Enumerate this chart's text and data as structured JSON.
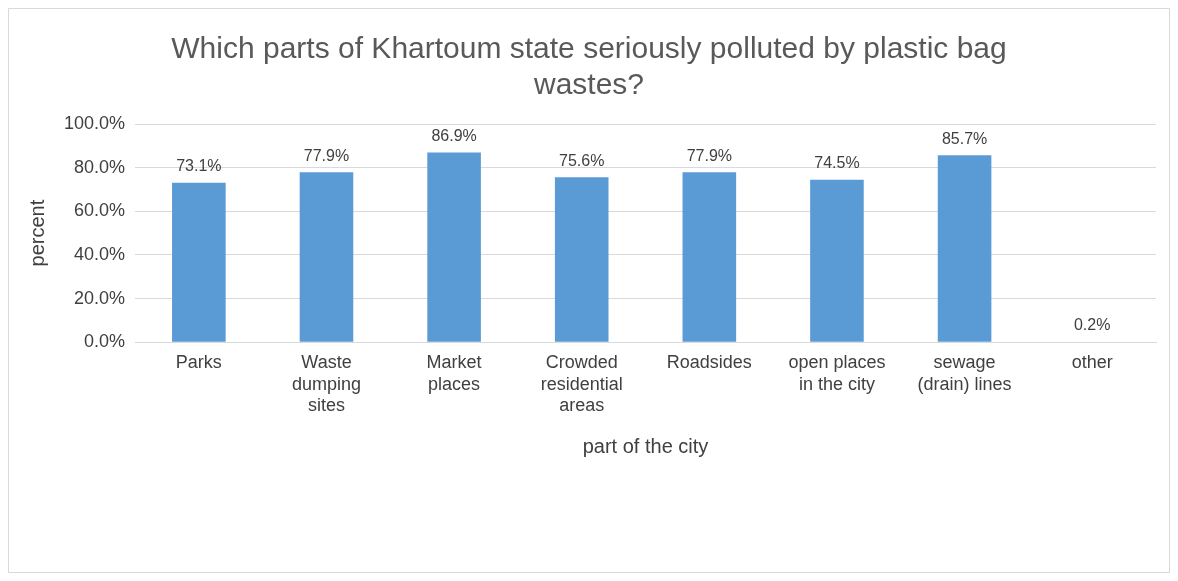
{
  "chart_data": {
    "type": "bar",
    "title": "Which parts of Khartoum state seriously polluted by plastic bag wastes?",
    "xlabel": "part of the city",
    "ylabel": "percent",
    "categories": [
      "Parks",
      "Waste dumping sites",
      "Market places",
      "Crowded residential areas",
      "Roadsides",
      "open places in the city",
      "sewage (drain) lines",
      "other"
    ],
    "values": [
      73.1,
      77.9,
      86.9,
      75.6,
      77.9,
      74.5,
      85.7,
      0.2
    ],
    "value_labels": [
      "73.1%",
      "77.9%",
      "86.9%",
      "75.6%",
      "77.9%",
      "74.5%",
      "85.7%",
      "0.2%"
    ],
    "color": "#5b9bd5",
    "ylim": [
      0,
      100
    ],
    "yticks": [
      {
        "value": 0,
        "label": "0.0%"
      },
      {
        "value": 20,
        "label": "20.0%"
      },
      {
        "value": 40,
        "label": "40.0%"
      },
      {
        "value": 60,
        "label": "60.0%"
      },
      {
        "value": 80,
        "label": "80.0%"
      },
      {
        "value": 100,
        "label": "100.0%"
      }
    ],
    "grid": "y"
  }
}
